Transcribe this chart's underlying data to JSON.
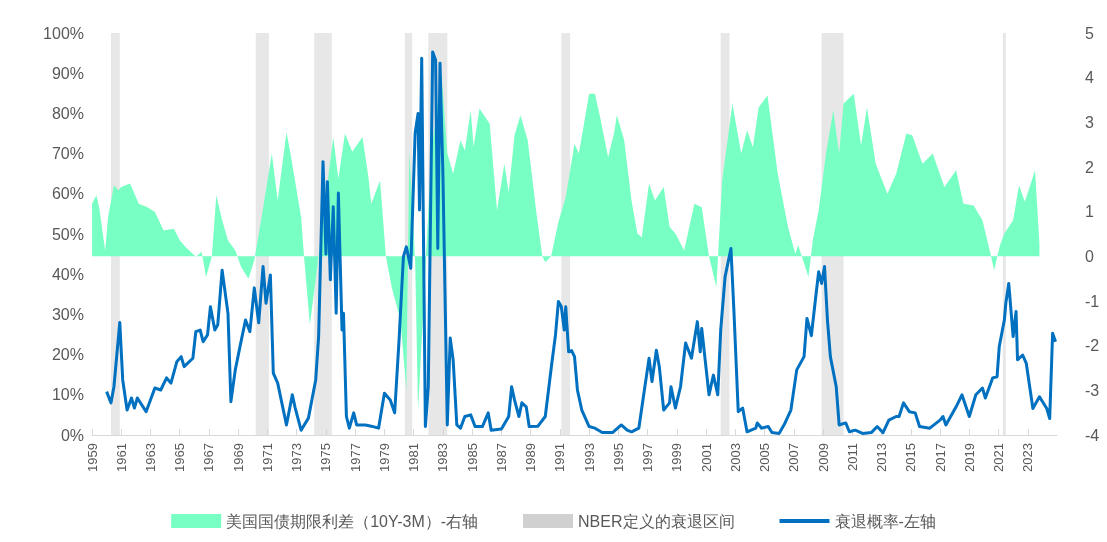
{
  "chart_data": {
    "type": "line",
    "xlim": [
      1959,
      2025
    ],
    "xticks": [
      1959,
      1961,
      1963,
      1965,
      1967,
      1969,
      1971,
      1973,
      1975,
      1977,
      1979,
      1981,
      1983,
      1985,
      1987,
      1989,
      1991,
      1993,
      1995,
      1997,
      1999,
      2001,
      2003,
      2005,
      2007,
      2009,
      2011,
      2013,
      2015,
      2017,
      2019,
      2021,
      2023
    ],
    "ylim": [
      0,
      100
    ],
    "yticks": [
      {
        "value": 0,
        "label": "0%"
      },
      {
        "value": 10,
        "label": "10%"
      },
      {
        "value": 20,
        "label": "20%"
      },
      {
        "value": 30,
        "label": "30%"
      },
      {
        "value": 40,
        "label": "40%"
      },
      {
        "value": 50,
        "label": "50%"
      },
      {
        "value": 60,
        "label": "60%"
      },
      {
        "value": 70,
        "label": "70%"
      },
      {
        "value": 80,
        "label": "80%"
      },
      {
        "value": 90,
        "label": "90%"
      },
      {
        "value": 100,
        "label": "100%"
      }
    ],
    "y2lim": [
      -4,
      5
    ],
    "y2ticks": [
      -4,
      -3,
      -2,
      -1,
      0,
      1,
      2,
      3,
      4,
      5
    ],
    "legend": "bottom",
    "grid": false,
    "bands": [
      {
        "axis": "x",
        "from": 1960.3,
        "to": 1960.9,
        "label": "NBER定义的衰退区间",
        "color": "#d0d0d0"
      },
      {
        "axis": "x",
        "from": 1970.2,
        "to": 1971.1,
        "color": "#d0d0d0"
      },
      {
        "axis": "x",
        "from": 1974.2,
        "to": 1975.4,
        "color": "#d0d0d0"
      },
      {
        "axis": "x",
        "from": 1980.4,
        "to": 1980.9,
        "color": "#d0d0d0"
      },
      {
        "axis": "x",
        "from": 1982.0,
        "to": 1983.3,
        "color": "#d0d0d0"
      },
      {
        "axis": "x",
        "from": 1991.1,
        "to": 1991.7,
        "color": "#d0d0d0"
      },
      {
        "axis": "x",
        "from": 2002.0,
        "to": 2002.6,
        "color": "#d0d0d0"
      },
      {
        "axis": "x",
        "from": 2008.9,
        "to": 2010.4,
        "color": "#d0d0d0"
      },
      {
        "axis": "x",
        "from": 2021.3,
        "to": 2021.5,
        "color": "#d0d0d0"
      }
    ],
    "series": [
      {
        "name": "美国国债期限利差（10Y-3M）-右轴",
        "type": "area",
        "axis": "y2",
        "color": "#78ffc4",
        "x": [
          1959.0,
          1959.3,
          1959.5,
          1959.9,
          1960.1,
          1960.5,
          1960.8,
          1961.0,
          1961.6,
          1962.2,
          1962.8,
          1963.3,
          1963.9,
          1964.6,
          1965.0,
          1965.4,
          1966.1,
          1966.5,
          1966.8,
          1967.2,
          1967.5,
          1967.9,
          1968.3,
          1968.8,
          1969.2,
          1969.7,
          1970.1,
          1970.6,
          1971.3,
          1971.7,
          1972.3,
          1972.6,
          1973.3,
          1973.5,
          1973.9,
          1974.5,
          1974.9,
          1975.5,
          1975.85,
          1976.3,
          1976.8,
          1977.5,
          1977.9,
          1978.1,
          1978.7,
          1979.1,
          1979.5,
          1980.1,
          1980.5,
          1980.7,
          1981.1,
          1981.3,
          1981.8,
          1982.2,
          1982.9,
          1983.3,
          1983.7,
          1984.2,
          1984.5,
          1984.9,
          1985.1,
          1985.5,
          1986.2,
          1986.7,
          1987.2,
          1987.5,
          1987.9,
          1988.3,
          1988.8,
          1989.4,
          1989.8,
          1990.0,
          1990.4,
          1990.9,
          1991.4,
          1992.0,
          1992.3,
          1993.0,
          1993.4,
          1993.8,
          1994.3,
          1994.7,
          1994.9,
          1995.4,
          1995.9,
          1996.3,
          1996.6,
          1997.1,
          1997.5,
          1998.1,
          1998.5,
          1998.9,
          1999.5,
          2000.2,
          2000.7,
          2001.2,
          2001.7,
          2002.1,
          2002.8,
          2003.4,
          2003.8,
          2004.2,
          2004.6,
          2005.2,
          2005.9,
          2006.6,
          2007.1,
          2007.3,
          2008.0,
          2008.3,
          2008.7,
          2009.2,
          2009.7,
          2010.1,
          2010.4,
          2011.1,
          2011.6,
          2012.0,
          2012.6,
          2013.4,
          2014.0,
          2014.7,
          2015.1,
          2015.8,
          2016.5,
          2017.3,
          2018.1,
          2018.6,
          2019.3,
          2019.9,
          2020.4,
          2020.7,
          2021.1,
          2021.4,
          2022.0,
          2022.4,
          2022.8,
          2023.5,
          2023.8
        ],
        "values": [
          1.18,
          1.37,
          1.07,
          0.13,
          0.88,
          1.59,
          1.48,
          1.55,
          1.63,
          1.18,
          1.1,
          0.99,
          0.58,
          0.62,
          0.36,
          0.21,
          -0.01,
          0.1,
          -0.46,
          0,
          1.37,
          0.81,
          0.36,
          0.13,
          -0.24,
          -0.5,
          -0.09,
          0.88,
          2.3,
          1.25,
          2.78,
          2.26,
          0.88,
          0,
          -1.54,
          0,
          1.1,
          2.67,
          1.74,
          2.75,
          2.34,
          2.67,
          1.78,
          1.18,
          1.7,
          0,
          -0.69,
          -1.43,
          -3.0,
          2.37,
          -0.09,
          -3.45,
          -0.31,
          2.3,
          4.09,
          2.3,
          1.85,
          2.6,
          2.37,
          3.27,
          2.45,
          3.31,
          2.97,
          1.03,
          2.07,
          1.44,
          2.71,
          3.16,
          2.6,
          0.96,
          0,
          -0.13,
          0,
          0.77,
          1.33,
          2.52,
          2.3,
          3.64,
          3.64,
          3.04,
          2.22,
          2.75,
          3.16,
          2.6,
          1.25,
          0.51,
          0.43,
          1.63,
          1.25,
          1.55,
          0.66,
          0.51,
          0.13,
          1.18,
          1.1,
          0,
          -0.69,
          1.7,
          3.42,
          2.3,
          2.82,
          2.45,
          3.34,
          3.6,
          1.85,
          0.66,
          0.06,
          0.25,
          -0.46,
          0.36,
          1.03,
          2.3,
          3.27,
          2.3,
          3.42,
          3.64,
          2.48,
          3.34,
          2.07,
          1.4,
          1.85,
          2.75,
          2.71,
          2.07,
          2.3,
          1.55,
          1.93,
          1.18,
          1.14,
          0.81,
          0.13,
          -0.31,
          0.25,
          0.51,
          0.81,
          1.59,
          1.22,
          1.93,
          0.28
        ]
      },
      {
        "name": "衰退概率-左轴",
        "color": "#0070c0",
        "x": [
          1960.0,
          1960.3,
          1960.5,
          1960.9,
          1961.1,
          1961.4,
          1961.7,
          1961.9,
          1962.1,
          1962.7,
          1963.3,
          1963.7,
          1964.1,
          1964.4,
          1964.8,
          1965.1,
          1965.3,
          1965.9,
          1966.1,
          1966.4,
          1966.6,
          1966.9,
          1967.1,
          1967.4,
          1967.6,
          1967.9,
          1968.1,
          1968.3,
          1968.5,
          1968.8,
          1969.1,
          1969.5,
          1969.8,
          1970.1,
          1970.4,
          1970.7,
          1970.9,
          1971.2,
          1971.4,
          1971.7,
          1972.3,
          1972.7,
          1972.9,
          1973.3,
          1973.8,
          1974.3,
          1974.5,
          1974.8,
          1975.0,
          1975.1,
          1975.3,
          1975.5,
          1975.7,
          1975.85,
          1976.1,
          1976.2,
          1976.4,
          1976.6,
          1976.9,
          1977.1,
          1977.7,
          1978.1,
          1978.6,
          1979.0,
          1979.4,
          1979.7,
          1980.0,
          1980.3,
          1980.5,
          1980.8,
          1981.1,
          1981.3,
          1981.4,
          1981.55,
          1981.8,
          1982.0,
          1982.3,
          1982.5,
          1982.65,
          1982.8,
          1983.0,
          1983.3,
          1983.5,
          1983.7,
          1983.95,
          1984.2,
          1984.5,
          1984.9,
          1985.2,
          1985.7,
          1986.1,
          1986.3,
          1987.0,
          1987.5,
          1987.7,
          1987.9,
          1988.2,
          1988.4,
          1988.7,
          1988.9,
          1989.5,
          1990.0,
          1990.45,
          1990.7,
          1990.9,
          1991.1,
          1991.3,
          1991.4,
          1991.6,
          1991.8,
          1992.0,
          1992.2,
          1992.5,
          1993.0,
          1993.4,
          1993.9,
          1994.6,
          1995.2,
          1995.6,
          1995.9,
          1996.4,
          1996.7,
          1997.1,
          1997.3,
          1997.6,
          1997.8,
          1998.1,
          1998.5,
          1998.6,
          1998.9,
          1999.25,
          1999.6,
          2000.0,
          2000.4,
          2000.6,
          2000.7,
          2001.2,
          2001.5,
          2001.8,
          2002.0,
          2002.3,
          2002.7,
          2002.9,
          2003.2,
          2003.5,
          2003.8,
          2004.4,
          2004.5,
          2004.8,
          2005.25,
          2005.5,
          2006.0,
          2006.4,
          2006.8,
          2007.2,
          2007.7,
          2007.9,
          2008.2,
          2008.5,
          2008.7,
          2008.9,
          2009.1,
          2009.3,
          2009.5,
          2009.9,
          2010.1,
          2010.55,
          2010.8,
          2011.2,
          2011.7,
          2012.3,
          2012.7,
          2013.1,
          2013.5,
          2014.0,
          2014.2,
          2014.5,
          2014.9,
          2015.3,
          2015.6,
          2016.3,
          2017.0,
          2017.2,
          2017.4,
          2018.1,
          2018.5,
          2019.0,
          2019.45,
          2019.9,
          2020.1,
          2020.6,
          2020.9,
          2021.05,
          2021.4,
          2021.5,
          2021.7,
          2022.0,
          2022.2,
          2022.3,
          2022.65,
          2022.9,
          2023.35,
          2023.8,
          2024.3,
          2024.5,
          2024.7,
          2024.9
        ],
        "values": [
          10.8,
          8,
          12,
          28,
          13.7,
          6.2,
          9.2,
          6.7,
          9.2,
          5.8,
          11.7,
          11.2,
          14.2,
          12.9,
          18.2,
          19.5,
          17,
          19.1,
          25.7,
          26.1,
          23.2,
          24.9,
          31.9,
          26.1,
          27.4,
          41,
          35.6,
          30.3,
          8.3,
          16.2,
          21.6,
          28.6,
          25.7,
          36.6,
          27.9,
          41.9,
          32.8,
          39.8,
          15.4,
          12.9,
          2.5,
          10,
          6.7,
          1.2,
          4.2,
          13.7,
          24.5,
          68,
          45,
          63,
          38.6,
          56.8,
          30.3,
          60.2,
          26.1,
          30.3,
          4.6,
          1.7,
          5.5,
          2.5,
          2.5,
          2.2,
          1.7,
          10.4,
          8.7,
          5.5,
          23.6,
          44.4,
          46.8,
          41.5,
          75,
          80,
          56,
          93.7,
          2.1,
          12,
          95.3,
          93.3,
          46.4,
          92.5,
          65,
          2.5,
          24.1,
          18.7,
          2.5,
          1.7,
          4.6,
          5,
          2.1,
          2.1,
          5.5,
          1.2,
          1.5,
          4.6,
          12,
          8.7,
          4.6,
          8,
          7,
          2.1,
          2.2,
          4.6,
          17.9,
          24.9,
          33.2,
          31.9,
          26.1,
          31.9,
          20.7,
          21,
          19.5,
          11.2,
          6.2,
          2.1,
          1.7,
          0.6,
          0.6,
          2.5,
          1.2,
          0.8,
          1.7,
          9.2,
          19.1,
          13.3,
          21.1,
          17,
          6.2,
          8,
          12,
          6.7,
          12,
          22.9,
          19.1,
          28.2,
          20.7,
          26.5,
          10,
          14.9,
          10,
          26.1,
          39.4,
          46.4,
          31.1,
          5.8,
          6.7,
          0.8,
          1.7,
          3,
          1.7,
          2.1,
          0.6,
          0.4,
          3,
          6.2,
          16.2,
          19.5,
          29,
          24.7,
          34.4,
          40.6,
          37.7,
          41.9,
          28.6,
          19.5,
          12,
          2.5,
          3,
          0.8,
          1.2,
          0.4,
          0.6,
          2.1,
          0.6,
          3.7,
          4.6,
          4.6,
          8,
          5.8,
          5.5,
          2.1,
          1.7,
          3.7,
          4.6,
          2.5,
          7,
          10,
          4.6,
          10,
          11.7,
          9.2,
          14.2,
          14.5,
          22,
          28.6,
          32.8,
          37.7,
          24.5,
          30.7,
          18.7,
          19.9,
          17.8,
          6.6,
          9.5,
          6.6,
          4.1,
          25.3,
          23.2
        ]
      }
    ]
  }
}
